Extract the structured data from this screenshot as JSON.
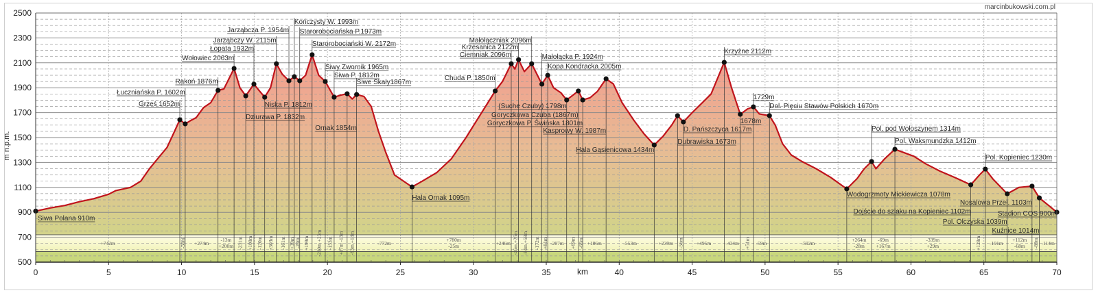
{
  "watermark": "marcinbukowski.com.pl",
  "chart_data": {
    "type": "area",
    "title": "",
    "xlabel": "km",
    "ylabel": "m n.p.m.",
    "xlim": [
      0,
      70
    ],
    "ylim": [
      500,
      2500
    ],
    "x_ticks": [
      0,
      5,
      10,
      15,
      20,
      25,
      30,
      35,
      40,
      45,
      50,
      55,
      60,
      65,
      70
    ],
    "y_ticks": [
      500,
      700,
      900,
      1100,
      1300,
      1500,
      1700,
      1900,
      2100,
      2300,
      2500
    ],
    "grid": true,
    "colors": {
      "line": "#c0141c",
      "fill_top": "#f4988e",
      "fill_mid": "#e7bc94",
      "fill_low": "#d3d28a",
      "ground": "#c8d77c",
      "band_top": "#fffde6",
      "band_bottom": "#f1f3b8"
    },
    "profile": [
      [
        0,
        910
      ],
      [
        1,
        935
      ],
      [
        2,
        955
      ],
      [
        3,
        985
      ],
      [
        4,
        1010
      ],
      [
        5,
        1045
      ],
      [
        5.5,
        1075
      ],
      [
        6.5,
        1100
      ],
      [
        7.2,
        1150
      ],
      [
        7.8,
        1250
      ],
      [
        8.5,
        1350
      ],
      [
        9,
        1420
      ],
      [
        9.4,
        1520
      ],
      [
        9.88,
        1643
      ],
      [
        10.25,
        1610
      ],
      [
        10.6,
        1635
      ],
      [
        11,
        1660
      ],
      [
        11.5,
        1740
      ],
      [
        12,
        1780
      ],
      [
        12.5,
        1879
      ],
      [
        12.9,
        1890
      ],
      [
        13.6,
        2055
      ],
      [
        14,
        1900
      ],
      [
        14.4,
        1835
      ],
      [
        14.96,
        1929
      ],
      [
        15.3,
        1880
      ],
      [
        15.7,
        1824
      ],
      [
        16.1,
        1900
      ],
      [
        16.5,
        2093
      ],
      [
        16.9,
        2010
      ],
      [
        17.36,
        1956
      ],
      [
        17.73,
        1989
      ],
      [
        18.1,
        1956
      ],
      [
        18.5,
        2000
      ],
      [
        18.95,
        2165
      ],
      [
        19.4,
        2000
      ],
      [
        19.85,
        1950
      ],
      [
        20.46,
        1824
      ],
      [
        20.9,
        1840
      ],
      [
        21.35,
        1852
      ],
      [
        21.7,
        1810
      ],
      [
        22,
        1846
      ],
      [
        22.5,
        1830
      ],
      [
        23,
        1750
      ],
      [
        23.5,
        1550
      ],
      [
        24,
        1380
      ],
      [
        24.6,
        1200
      ],
      [
        25.8,
        1104
      ],
      [
        26.5,
        1150
      ],
      [
        27.5,
        1220
      ],
      [
        28.5,
        1330
      ],
      [
        29.5,
        1500
      ],
      [
        30.3,
        1650
      ],
      [
        31,
        1780
      ],
      [
        31.5,
        1874
      ],
      [
        32,
        1950
      ],
      [
        32.6,
        2093
      ],
      [
        32.85,
        2050
      ],
      [
        33.1,
        2126
      ],
      [
        33.5,
        2030
      ],
      [
        34,
        2093
      ],
      [
        34.4,
        2000
      ],
      [
        34.7,
        1929
      ],
      [
        35.1,
        2000
      ],
      [
        35.5,
        1900
      ],
      [
        36,
        1860
      ],
      [
        36.4,
        1802
      ],
      [
        37.2,
        1874
      ],
      [
        37.5,
        1802
      ],
      [
        38,
        1820
      ],
      [
        38.5,
        1870
      ],
      [
        39.1,
        1972
      ],
      [
        39.6,
        1930
      ],
      [
        40.2,
        1780
      ],
      [
        41,
        1640
      ],
      [
        41.7,
        1530
      ],
      [
        42.4,
        1440
      ],
      [
        43,
        1510
      ],
      [
        43.6,
        1600
      ],
      [
        44,
        1676
      ],
      [
        44.4,
        1626
      ],
      [
        45,
        1700
      ],
      [
        45.7,
        1780
      ],
      [
        46.3,
        1850
      ],
      [
        47.2,
        2104
      ],
      [
        47.7,
        1900
      ],
      [
        48.3,
        1687
      ],
      [
        48.8,
        1730
      ],
      [
        49.2,
        1747
      ],
      [
        49.6,
        1690
      ],
      [
        50.3,
        1676
      ],
      [
        50.7,
        1600
      ],
      [
        51.2,
        1450
      ],
      [
        51.8,
        1360
      ],
      [
        52.5,
        1310
      ],
      [
        53.5,
        1250
      ],
      [
        54.5,
        1180
      ],
      [
        55.6,
        1088
      ],
      [
        56.3,
        1170
      ],
      [
        56.8,
        1250
      ],
      [
        57.3,
        1308
      ],
      [
        57.6,
        1250
      ],
      [
        58.2,
        1330
      ],
      [
        58.9,
        1406
      ],
      [
        59.5,
        1380
      ],
      [
        60.2,
        1350
      ],
      [
        61,
        1290
      ],
      [
        62,
        1230
      ],
      [
        63,
        1180
      ],
      [
        64.1,
        1121
      ],
      [
        64.7,
        1200
      ],
      [
        65.1,
        1247
      ],
      [
        65.6,
        1170
      ],
      [
        66.6,
        1049
      ],
      [
        67.4,
        1100
      ],
      [
        68.3,
        1110
      ],
      [
        68.8,
        1016
      ],
      [
        70,
        901
      ]
    ],
    "waypoints": [
      {
        "label": "Siwa Polana 910m",
        "km": 0,
        "elev": 910
      },
      {
        "label": "Grześ 1652m",
        "km": 9.88,
        "elev": 1643
      },
      {
        "label": "Łuczniańska P. 1602m",
        "km": 10.25,
        "elev": 1610
      },
      {
        "label": "Rakoń 1876m",
        "km": 12.5,
        "elev": 1879
      },
      {
        "label": "Wołowiec 2063m",
        "km": 13.6,
        "elev": 2055
      },
      {
        "label": "Dziurawa P. 1832m",
        "km": 14.4,
        "elev": 1835
      },
      {
        "label": "Łopata 1932m",
        "km": 14.96,
        "elev": 1929
      },
      {
        "label": "Niska P. 1812m",
        "km": 15.7,
        "elev": 1824
      },
      {
        "label": "Jarząbczy W. 2115m",
        "km": 16.5,
        "elev": 2093
      },
      {
        "label": "Jarząbcza P. 1954m",
        "km": 17.36,
        "elev": 1956
      },
      {
        "label": "Kończysty W. 1993m",
        "km": 17.73,
        "elev": 1989
      },
      {
        "label": "Starorobociańska P.1973m",
        "km": 18.1,
        "elev": 1956
      },
      {
        "label": "Starorobociański W. 2172m",
        "km": 18.95,
        "elev": 2165
      },
      {
        "label": "Siwy Zwornik 1965m",
        "km": 19.85,
        "elev": 1950
      },
      {
        "label": "Siwa P. 1812m",
        "km": 20.46,
        "elev": 1824
      },
      {
        "label": "Ornak 1854m",
        "km": 21.35,
        "elev": 1852
      },
      {
        "label": "Siwe Skały1867m",
        "km": 22.0,
        "elev": 1846
      },
      {
        "label": "Hala Ornak 1095m",
        "km": 25.8,
        "elev": 1104
      },
      {
        "label": "Chuda P. 1850m",
        "km": 31.5,
        "elev": 1874
      },
      {
        "label": "Ciemniak 2096m",
        "km": 32.6,
        "elev": 2093
      },
      {
        "label": "Krzesanica 2122m",
        "km": 33.1,
        "elev": 2126
      },
      {
        "label": "Małołączniak 2096m",
        "km": 34.0,
        "elev": 2093
      },
      {
        "label": "Małołącka P. 1924m",
        "km": 34.7,
        "elev": 1929
      },
      {
        "label": "Kopa Kondracka 2005m",
        "km": 35.1,
        "elev": 2000
      },
      {
        "label": "(Suche Czuby) 1798m",
        "km": 36.4,
        "elev": 1802
      },
      {
        "label": "Goryczkowa Czuba (1867m)",
        "km": 37.2,
        "elev": 1874
      },
      {
        "label": "Goryczkowa P. Świńska 1801m",
        "km": 37.5,
        "elev": 1802
      },
      {
        "label": "Kasprowy W. 1987m",
        "km": 39.1,
        "elev": 1972
      },
      {
        "label": "Hala Gąsienicowa 1434m",
        "km": 42.4,
        "elev": 1440
      },
      {
        "label": "Dubrawiska 1673m",
        "km": 44.0,
        "elev": 1676
      },
      {
        "label": "D. Pańszczyca 1617m",
        "km": 44.4,
        "elev": 1626
      },
      {
        "label": "Krzyżne 2112m",
        "km": 47.2,
        "elev": 2104
      },
      {
        "label": "1678m",
        "km": 48.3,
        "elev": 1687
      },
      {
        "label": "1729m",
        "km": 49.2,
        "elev": 1747
      },
      {
        "label": "Dol. Pięciu Stawów Polskich 1670m",
        "km": 50.3,
        "elev": 1676
      },
      {
        "label": "Wodogrzmoty Mickiewicza 1078m",
        "km": 55.6,
        "elev": 1088
      },
      {
        "label": "Pol. pod Wołoszynem 1314m",
        "km": 57.3,
        "elev": 1308
      },
      {
        "label": "Pol. Waksmundzka 1412m",
        "km": 58.9,
        "elev": 1406
      },
      {
        "label": "Dojście do szlaku na Kopieniec 1102m",
        "km": 64.1,
        "elev": 1121
      },
      {
        "label": "Pol. Kopieniec 1230m",
        "km": 65.1,
        "elev": 1247
      },
      {
        "label": "Pol. Olczyska 1039m",
        "km": 66.6,
        "elev": 1049
      },
      {
        "label": "Nosalowa Przeł. 1103m",
        "km": 68.3,
        "elev": 1110
      },
      {
        "label": "Kuźnice 1014m",
        "km": 68.8,
        "elev": 1016
      },
      {
        "label": "Stadion COS 900m",
        "km": 70,
        "elev": 901
      }
    ],
    "segments": [
      {
        "from": 0,
        "to": 9.88,
        "text": [
          "+742m"
        ]
      },
      {
        "from": 9.88,
        "to": 10.25,
        "text": [
          "-50m"
        ]
      },
      {
        "from": 10.25,
        "to": 12.5,
        "text": [
          "+274m"
        ]
      },
      {
        "from": 12.5,
        "to": 13.6,
        "text": [
          "-13m",
          "+200m"
        ]
      },
      {
        "from": 13.6,
        "to": 14.4,
        "text": [
          "-231m"
        ]
      },
      {
        "from": 14.4,
        "to": 14.96,
        "text": [
          "+100m"
        ]
      },
      {
        "from": 14.96,
        "to": 15.7,
        "text": [
          "-120m"
        ]
      },
      {
        "from": 15.7,
        "to": 16.5,
        "text": [
          "+303m"
        ]
      },
      {
        "from": 16.5,
        "to": 17.36,
        "text": [
          "-161m"
        ]
      },
      {
        "from": 17.36,
        "to": 17.73,
        "text": [
          "+39m"
        ]
      },
      {
        "from": 17.73,
        "to": 18.1,
        "text": [
          "-20m"
        ]
      },
      {
        "from": 18.1,
        "to": 18.95,
        "text": [
          "+199m"
        ]
      },
      {
        "from": 18.95,
        "to": 19.85,
        "text": [
          "-230m",
          "+23m"
        ]
      },
      {
        "from": 19.85,
        "to": 20.46,
        "text": [
          "-153m"
        ]
      },
      {
        "from": 20.46,
        "to": 21.35,
        "text": [
          "+87m",
          "-13m"
        ]
      },
      {
        "from": 21.35,
        "to": 22.0,
        "text": [
          "-63m",
          "+14m"
        ]
      },
      {
        "from": 22.0,
        "to": 25.8,
        "text": [
          "-772m"
        ]
      },
      {
        "from": 25.8,
        "to": 31.5,
        "text": [
          "+780m",
          "-25m"
        ]
      },
      {
        "from": 31.5,
        "to": 32.6,
        "text": [
          "+246m"
        ]
      },
      {
        "from": 32.6,
        "to": 33.1,
        "text": [
          "-46m",
          "+26m"
        ]
      },
      {
        "from": 33.1,
        "to": 34.0,
        "text": [
          "-84m",
          "+58m"
        ]
      },
      {
        "from": 34.0,
        "to": 34.7,
        "text": [
          "-172m"
        ]
      },
      {
        "from": 34.7,
        "to": 35.1,
        "text": [
          "+81m"
        ]
      },
      {
        "from": 35.1,
        "to": 36.4,
        "text": [
          "-207m"
        ]
      },
      {
        "from": 36.4,
        "to": 37.2,
        "text": [
          "+69m"
        ]
      },
      {
        "from": 37.2,
        "to": 37.5,
        "text": [
          "-66m"
        ]
      },
      {
        "from": 37.5,
        "to": 39.1,
        "text": [
          "+186m"
        ]
      },
      {
        "from": 39.1,
        "to": 42.4,
        "text": [
          "-553m"
        ]
      },
      {
        "from": 42.4,
        "to": 44.0,
        "text": [
          "+239m"
        ]
      },
      {
        "from": 44.0,
        "to": 44.4,
        "text": [
          "-56m"
        ]
      },
      {
        "from": 44.4,
        "to": 47.2,
        "text": [
          "+495m"
        ]
      },
      {
        "from": 47.2,
        "to": 48.3,
        "text": [
          "-434m"
        ]
      },
      {
        "from": 48.3,
        "to": 49.2,
        "text": [
          "+51m"
        ]
      },
      {
        "from": 49.2,
        "to": 50.3,
        "text": [
          "-59m"
        ]
      },
      {
        "from": 50.3,
        "to": 55.6,
        "text": [
          "-592m"
        ]
      },
      {
        "from": 55.6,
        "to": 57.3,
        "text": [
          "+264m",
          "-28m"
        ]
      },
      {
        "from": 57.3,
        "to": 58.9,
        "text": [
          "-69m",
          "+167m"
        ]
      },
      {
        "from": 58.9,
        "to": 64.1,
        "text": [
          "-339m",
          "+29m"
        ]
      },
      {
        "from": 64.1,
        "to": 65.1,
        "text": [
          "+128m"
        ]
      },
      {
        "from": 65.1,
        "to": 66.6,
        "text": [
          "-191m"
        ]
      },
      {
        "from": 66.6,
        "to": 68.3,
        "text": [
          "+112m",
          "-68m"
        ]
      },
      {
        "from": 68.3,
        "to": 68.8,
        "text": [
          "-89m"
        ]
      },
      {
        "from": 68.8,
        "to": 70,
        "text": [
          "-114m"
        ]
      }
    ]
  }
}
